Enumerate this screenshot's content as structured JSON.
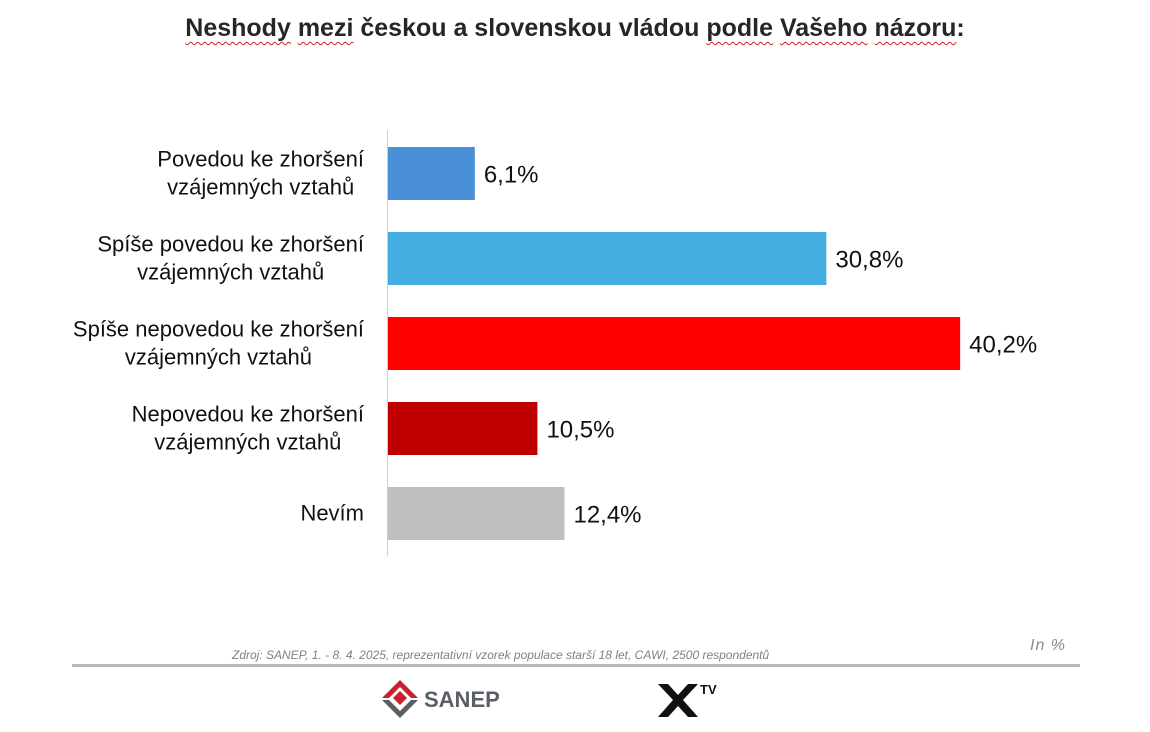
{
  "title_parts": [
    {
      "text": "Neshody",
      "squiggle": true
    },
    {
      "text": " ",
      "squiggle": false
    },
    {
      "text": "mezi",
      "squiggle": true
    },
    {
      "text": " českou a slovenskou vládou ",
      "squiggle": false
    },
    {
      "text": "podle",
      "squiggle": true
    },
    {
      "text": " ",
      "squiggle": false
    },
    {
      "text": "Vašeho",
      "squiggle": true
    },
    {
      "text": " ",
      "squiggle": false
    },
    {
      "text": "názoru",
      "squiggle": true
    },
    {
      "text": ":",
      "squiggle": false
    }
  ],
  "chart_data": {
    "type": "bar",
    "orientation": "horizontal",
    "title": "Neshody mezi českou a slovenskou vládou podle Vašeho názoru:",
    "categories": [
      [
        "Povedou ke zhoršení",
        "vzájemných vztahů"
      ],
      [
        "Spíše povedou ke zhoršení",
        "vzájemných vztahů"
      ],
      [
        "Spíše nepovedou ke zhoršení",
        "vzájemných vztahů"
      ],
      [
        "Nepovedou ke zhoršení",
        "vzájemných vztahů"
      ],
      [
        "Nevím"
      ]
    ],
    "values": [
      6.1,
      30.8,
      40.2,
      10.5,
      12.4
    ],
    "value_labels": [
      "6,1%",
      "30,8%",
      "40,2%",
      "10,5%",
      "12,4%"
    ],
    "colors": [
      "#4a90d9",
      "#45aee0",
      "#ff0000",
      "#c00000",
      "#bfbfbf"
    ],
    "xlim": [
      0,
      43
    ],
    "grid": false,
    "legend": false
  },
  "footer": {
    "source": "Zdroj: SANEP, 1. - 8. 4. 2025, reprezentativní vzorek populace starší 18 let, CAWI, 2500 respondentů",
    "unit": "In %",
    "sanep_logo_text": "SANEP",
    "xtv_logo_text": "TV"
  },
  "colors": {
    "axis": "#d0d0d0",
    "rule": "#b8b8b8",
    "sanep_red": "#c8232c",
    "sanep_gray": "#5a5f66"
  },
  "icons": [
    "sanep-logo",
    "xtv-logo"
  ]
}
